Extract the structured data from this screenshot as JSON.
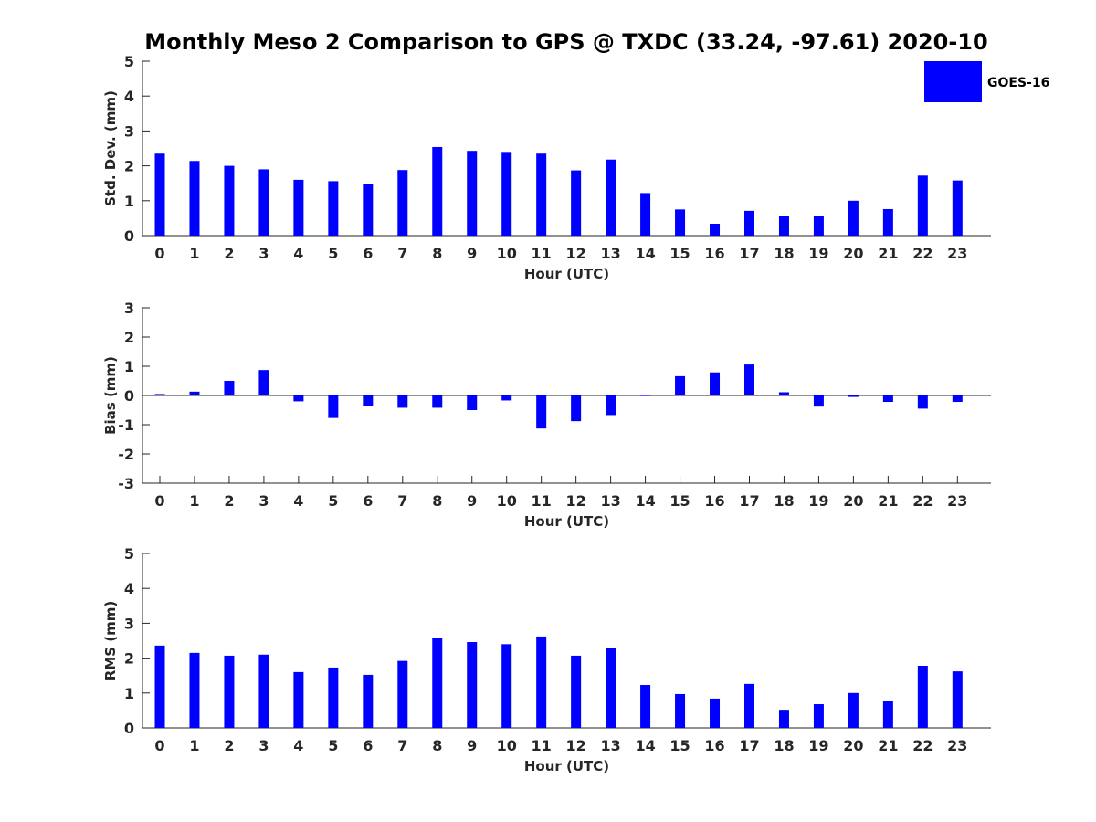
{
  "chart_data": {
    "title": "Monthly Meso 2 Comparison to GPS @ TXDC (33.24, -97.61) 2020-10",
    "legend": {
      "label": "GOES-16",
      "color": "#0000ff",
      "placement": "top-right"
    },
    "panels": [
      {
        "type": "bar",
        "ylabel": "Std. Dev. (mm)",
        "xlabel": "Hour (UTC)",
        "ylim": [
          0,
          5
        ],
        "yticks": [
          "0",
          "1",
          "2",
          "3",
          "4",
          "5"
        ],
        "categories": [
          "0",
          "1",
          "2",
          "3",
          "4",
          "5",
          "6",
          "7",
          "8",
          "9",
          "10",
          "11",
          "12",
          "13",
          "14",
          "15",
          "16",
          "17",
          "18",
          "19",
          "20",
          "21",
          "22",
          "23"
        ],
        "series": [
          {
            "name": "GOES-16",
            "values": [
              2.35,
              2.14,
              2.0,
              1.9,
              1.6,
              1.56,
              1.49,
              1.88,
              2.54,
              2.43,
              2.4,
              2.35,
              1.87,
              2.18,
              1.22,
              0.75,
              0.34,
              0.71,
              0.55,
              0.55,
              1.0,
              0.76,
              1.72,
              1.58
            ]
          }
        ]
      },
      {
        "type": "bar",
        "ylabel": "Bias (mm)",
        "xlabel": "Hour (UTC)",
        "ylim": [
          -3,
          3
        ],
        "yticks": [
          "-3",
          "-2",
          "-1",
          "0",
          "1",
          "2",
          "3"
        ],
        "categories": [
          "0",
          "1",
          "2",
          "3",
          "4",
          "5",
          "6",
          "7",
          "8",
          "9",
          "10",
          "11",
          "12",
          "13",
          "14",
          "15",
          "16",
          "17",
          "18",
          "19",
          "20",
          "21",
          "22",
          "23"
        ],
        "series": [
          {
            "name": "GOES-16",
            "values": [
              0.05,
              0.13,
              0.5,
              0.87,
              -0.2,
              -0.77,
              -0.36,
              -0.42,
              -0.42,
              -0.5,
              -0.17,
              -1.13,
              -0.88,
              -0.67,
              -0.02,
              0.66,
              0.79,
              1.06,
              0.11,
              -0.38,
              -0.05,
              -0.22,
              -0.45,
              -0.22
            ]
          }
        ]
      },
      {
        "type": "bar",
        "ylabel": "RMS (mm)",
        "xlabel": "Hour (UTC)",
        "ylim": [
          0,
          5
        ],
        "yticks": [
          "0",
          "1",
          "2",
          "3",
          "4",
          "5"
        ],
        "categories": [
          "0",
          "1",
          "2",
          "3",
          "4",
          "5",
          "6",
          "7",
          "8",
          "9",
          "10",
          "11",
          "12",
          "13",
          "14",
          "15",
          "16",
          "17",
          "18",
          "19",
          "20",
          "21",
          "22",
          "23"
        ],
        "series": [
          {
            "name": "GOES-16",
            "values": [
              2.36,
              2.15,
              2.07,
              2.1,
              1.6,
              1.73,
              1.52,
              1.92,
              2.57,
              2.46,
              2.4,
              2.62,
              2.07,
              2.3,
              1.23,
              0.97,
              0.84,
              1.26,
              0.52,
              0.68,
              1.0,
              0.78,
              1.78,
              1.62
            ]
          }
        ]
      }
    ]
  }
}
